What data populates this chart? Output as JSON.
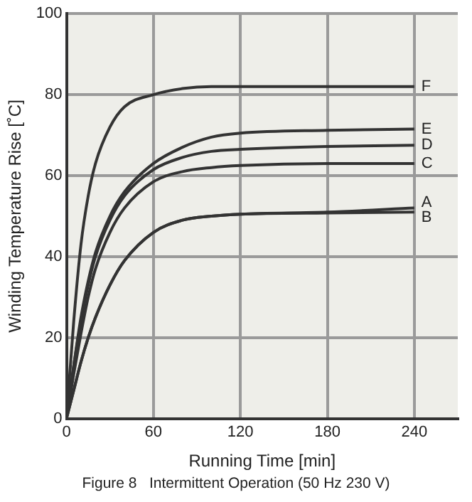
{
  "chart_data": {
    "type": "line",
    "xlabel": "Running Time [min]",
    "ylabel": "Winding Temperature Rise [˚C]",
    "x": [
      0,
      5,
      10,
      15,
      20,
      30,
      40,
      60,
      80,
      100,
      120,
      180,
      240
    ],
    "xlim": [
      0,
      270
    ],
    "xticks": [
      0,
      60,
      120,
      180,
      240
    ],
    "ylim": [
      0,
      100
    ],
    "yticks": [
      0,
      20,
      40,
      60,
      80,
      100
    ],
    "grid": true,
    "legend": false,
    "marker": "none",
    "line_style": "solid",
    "annotations": [
      "Figure 8   Intermittent Operation (50 Hz 230 V)"
    ],
    "series": [
      {
        "name": "F",
        "color": "#333333",
        "values": [
          0,
          24,
          43,
          55,
          63,
          72,
          77,
          80,
          81.5,
          82,
          82,
          82,
          82
        ]
      },
      {
        "name": "E",
        "color": "#333333",
        "values": [
          0,
          13,
          25,
          34,
          41,
          50,
          56,
          63,
          67,
          69.5,
          70.5,
          71.2,
          71.5
        ]
      },
      {
        "name": "D",
        "color": "#333333",
        "values": [
          0,
          13,
          24,
          33,
          40,
          49,
          55,
          61.5,
          64.5,
          66,
          66.5,
          67.2,
          67.5
        ]
      },
      {
        "name": "C",
        "color": "#333333",
        "values": [
          0,
          11,
          21,
          30,
          37,
          46,
          52,
          58.5,
          61,
          62,
          62.5,
          63,
          63
        ]
      },
      {
        "name": "A",
        "color": "#333333",
        "values": [
          0,
          7,
          14,
          20,
          25,
          33,
          39,
          46,
          49,
          50,
          50.5,
          51,
          52
        ]
      },
      {
        "name": "B",
        "color": "#333333",
        "values": [
          0,
          7,
          14,
          20,
          25,
          33,
          39,
          46,
          49,
          50,
          50.5,
          50.8,
          51
        ]
      }
    ]
  }
}
